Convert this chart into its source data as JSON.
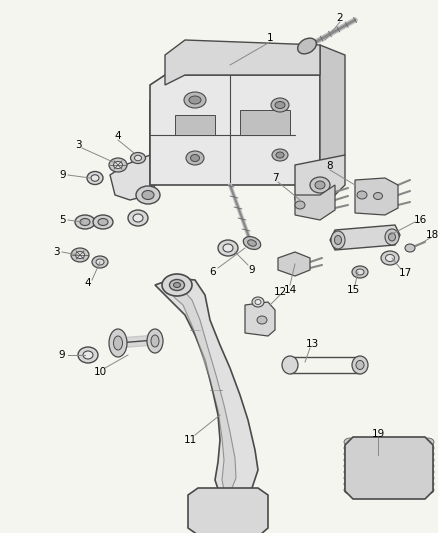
{
  "background_color": "#f5f5f0",
  "line_color": "#4a4a4a",
  "text_color": "#000000",
  "fig_width": 4.38,
  "fig_height": 5.33,
  "dpi": 100,
  "components": {
    "bracket_color": "#e8e8e8",
    "pedal_color": "#e0e0e0",
    "pad_color": "#d0d0d0"
  }
}
